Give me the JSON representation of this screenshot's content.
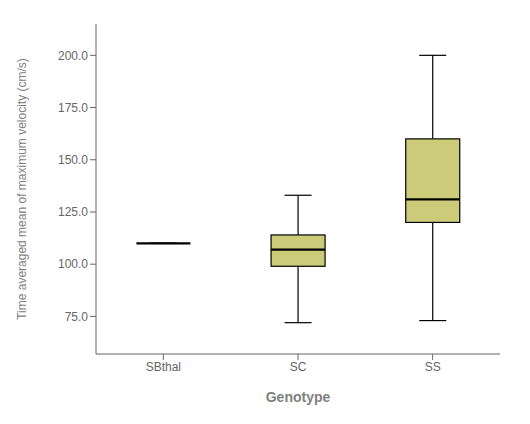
{
  "chart_data": {
    "type": "box",
    "xlabel": "Genotype",
    "ylabel": "Time averaged mean of maximum velocity (cm/s)",
    "categories": [
      "SBthal",
      "SC",
      "SS"
    ],
    "q1": [
      110,
      99,
      120
    ],
    "median": [
      110,
      107,
      131
    ],
    "q3": [
      110,
      114,
      160
    ],
    "whisker_low": [
      110,
      72,
      73
    ],
    "whisker_high": [
      110,
      133,
      200
    ],
    "color": "#cccb7a",
    "ylim": [
      57,
      215
    ],
    "yticks": [
      {
        "value": 75.0,
        "label": "75.0"
      },
      {
        "value": 100.0,
        "label": "100.0"
      },
      {
        "value": 125.0,
        "label": "125.0"
      },
      {
        "value": 150.0,
        "label": "150.0"
      },
      {
        "value": 175.0,
        "label": "175.0"
      },
      {
        "value": 200.0,
        "label": "200.0"
      }
    ],
    "grid": false
  }
}
